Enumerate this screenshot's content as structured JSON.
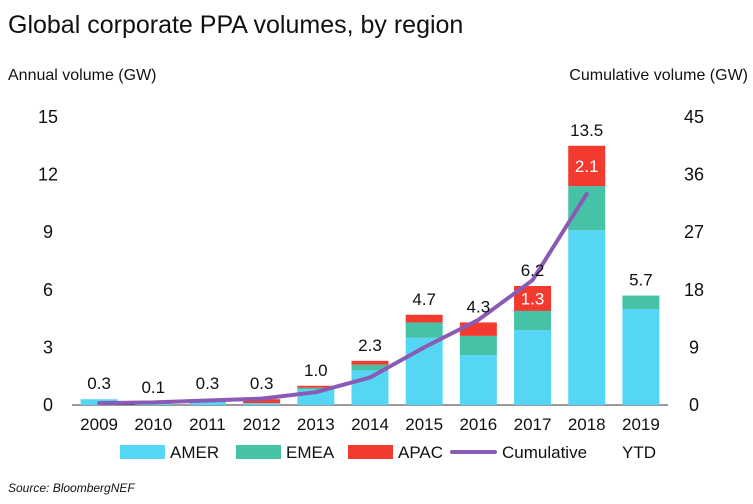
{
  "chart_data": {
    "type": "bar",
    "title": "Global corporate PPA volumes, by region",
    "ylabel": "Annual volume (GW)",
    "y2label": "Cumulative volume (GW)",
    "ylim": [
      0,
      15
    ],
    "y2lim": [
      0,
      45
    ],
    "yticks": [
      0,
      3,
      6,
      9,
      12,
      15
    ],
    "y2ticks": [
      0,
      9,
      18,
      27,
      36,
      45
    ],
    "categories": [
      "2009",
      "2010",
      "2011",
      "2012",
      "2013",
      "2014",
      "2015",
      "2016",
      "2017",
      "2018",
      "2019"
    ],
    "stacked": true,
    "series": [
      {
        "name": "AMER",
        "color": "#55d6f5",
        "values": [
          0.3,
          0.1,
          0.2,
          0.1,
          0.8,
          1.8,
          3.5,
          2.6,
          3.9,
          9.1,
          5.0
        ]
      },
      {
        "name": "EMEA",
        "color": "#46c2a7",
        "values": [
          0.0,
          0.0,
          0.1,
          0.0,
          0.1,
          0.3,
          0.8,
          1.0,
          1.0,
          2.3,
          0.7
        ]
      },
      {
        "name": "APAC",
        "color": "#f23a2f",
        "values": [
          0.0,
          0.0,
          0.0,
          0.2,
          0.1,
          0.2,
          0.4,
          0.7,
          1.3,
          2.1,
          0.0
        ]
      }
    ],
    "totals": [
      "0.3",
      "0.1",
      "0.3",
      "0.3",
      "1.0",
      "2.3",
      "4.7",
      "4.3",
      "6.2",
      "13.5",
      "5.7"
    ],
    "segment_labels": [
      {
        "category": "2017",
        "series": "APAC",
        "text": "1.3"
      },
      {
        "category": "2018",
        "series": "APAC",
        "text": "2.1"
      }
    ],
    "cumulative": {
      "name": "Cumulative",
      "color": "#8a5bb5",
      "axis": "right",
      "values": [
        0.3,
        0.4,
        0.7,
        1.0,
        2.0,
        4.3,
        9.0,
        13.3,
        19.5,
        33.0
      ]
    },
    "legend": [
      "AMER",
      "EMEA",
      "APAC",
      "Cumulative",
      "YTD"
    ],
    "legend_position": "bottom",
    "ytd_label": "YTD",
    "source": "Source: BloombergNEF"
  }
}
